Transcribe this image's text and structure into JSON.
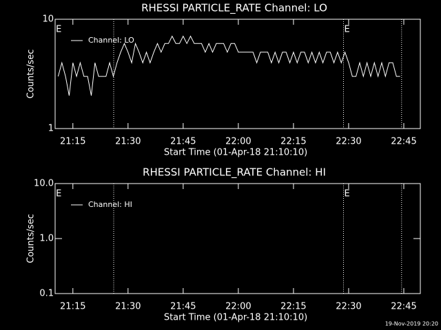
{
  "chart_data": [
    {
      "type": "line",
      "title": "RHESSI PARTICLE_RATE Channel: LO",
      "xlabel": "Start Time (01-Apr-18 21:10:10)",
      "ylabel": "Counts/sec",
      "x": [
        11,
        12,
        13,
        14,
        15,
        16,
        17,
        18,
        19,
        20,
        21,
        22,
        23,
        24,
        25,
        26,
        27,
        28,
        29,
        30,
        31,
        32,
        33,
        34,
        35,
        36,
        37,
        38,
        39,
        40,
        41,
        42,
        43,
        44,
        45,
        46,
        47,
        48,
        49,
        50,
        51,
        52,
        53,
        54,
        55,
        56,
        57,
        58,
        59,
        60,
        61,
        62,
        63,
        64,
        65,
        66,
        67,
        68,
        69,
        70,
        71,
        72,
        73,
        74,
        75,
        76,
        77,
        78,
        79,
        80,
        81,
        82,
        83,
        84,
        85,
        86,
        87,
        88,
        89,
        90,
        91,
        92,
        93,
        94,
        95,
        96,
        97,
        98,
        99,
        100,
        101,
        102,
        103,
        104
      ],
      "series": [
        {
          "name": "Channel: LO",
          "color": "#ffffff",
          "values": [
            3,
            4,
            3,
            2,
            4,
            3,
            4,
            3,
            3,
            2,
            4,
            3,
            3,
            3,
            4,
            3,
            4,
            5,
            6,
            5,
            4,
            6,
            5,
            4,
            5,
            4,
            5,
            6,
            5,
            6,
            6,
            7,
            6,
            6,
            7,
            6,
            7,
            6,
            6,
            6,
            5,
            6,
            5,
            6,
            6,
            6,
            5,
            6,
            6,
            5,
            5,
            5,
            5,
            5,
            4,
            5,
            5,
            5,
            4,
            5,
            4,
            5,
            5,
            4,
            5,
            4,
            5,
            5,
            4,
            5,
            4,
            5,
            4,
            5,
            5,
            4,
            5,
            4,
            5,
            4,
            3,
            3,
            4,
            3,
            4,
            3,
            4,
            3,
            4,
            3,
            4,
            4,
            3,
            3
          ]
        }
      ],
      "xlim": [
        10.17,
        109.5
      ],
      "xticks": [
        {
          "value": 15,
          "label": "21:15"
        },
        {
          "value": 30,
          "label": "21:30"
        },
        {
          "value": 45,
          "label": "21:45"
        },
        {
          "value": 60,
          "label": "22:00"
        },
        {
          "value": 75,
          "label": "22:15"
        },
        {
          "value": 90,
          "label": "22:30"
        },
        {
          "value": 105,
          "label": "22:45"
        }
      ],
      "ylim": [
        1,
        10
      ],
      "yticks": [
        1,
        10
      ],
      "log_y": true,
      "legend": "upper left",
      "vlines": [
        26.1,
        88.6,
        104.4
      ],
      "annotations": [
        {
          "x": 10.2,
          "text": "E"
        },
        {
          "x": 88.6,
          "text": "E"
        }
      ]
    },
    {
      "type": "line",
      "title": "RHESSI PARTICLE_RATE Channel: HI",
      "xlabel": "Start Time (01-Apr-18 21:10:10)",
      "ylabel": "Counts/sec",
      "x": [],
      "series": [
        {
          "name": "Channel: HI",
          "color": "#ffffff",
          "values": []
        }
      ],
      "xlim": [
        10.17,
        109.5
      ],
      "xticks": [
        {
          "value": 15,
          "label": "21:15"
        },
        {
          "value": 30,
          "label": "21:30"
        },
        {
          "value": 45,
          "label": "21:45"
        },
        {
          "value": 60,
          "label": "22:00"
        },
        {
          "value": 75,
          "label": "22:15"
        },
        {
          "value": 90,
          "label": "22:30"
        },
        {
          "value": 105,
          "label": "22:45"
        }
      ],
      "ylim": [
        0.1,
        10
      ],
      "yticks": [
        0.1,
        {
          "value": 1,
          "label": "1.0"
        },
        {
          "value": 10,
          "label": "10.0"
        }
      ],
      "log_y": true,
      "legend": "upper left",
      "vlines": [
        26.1,
        88.6,
        104.4
      ],
      "annotations": [
        {
          "x": 10.2,
          "text": "E"
        },
        {
          "x": 88.6,
          "text": "E"
        }
      ]
    }
  ],
  "footer": "19-Nov-2019 20:20"
}
